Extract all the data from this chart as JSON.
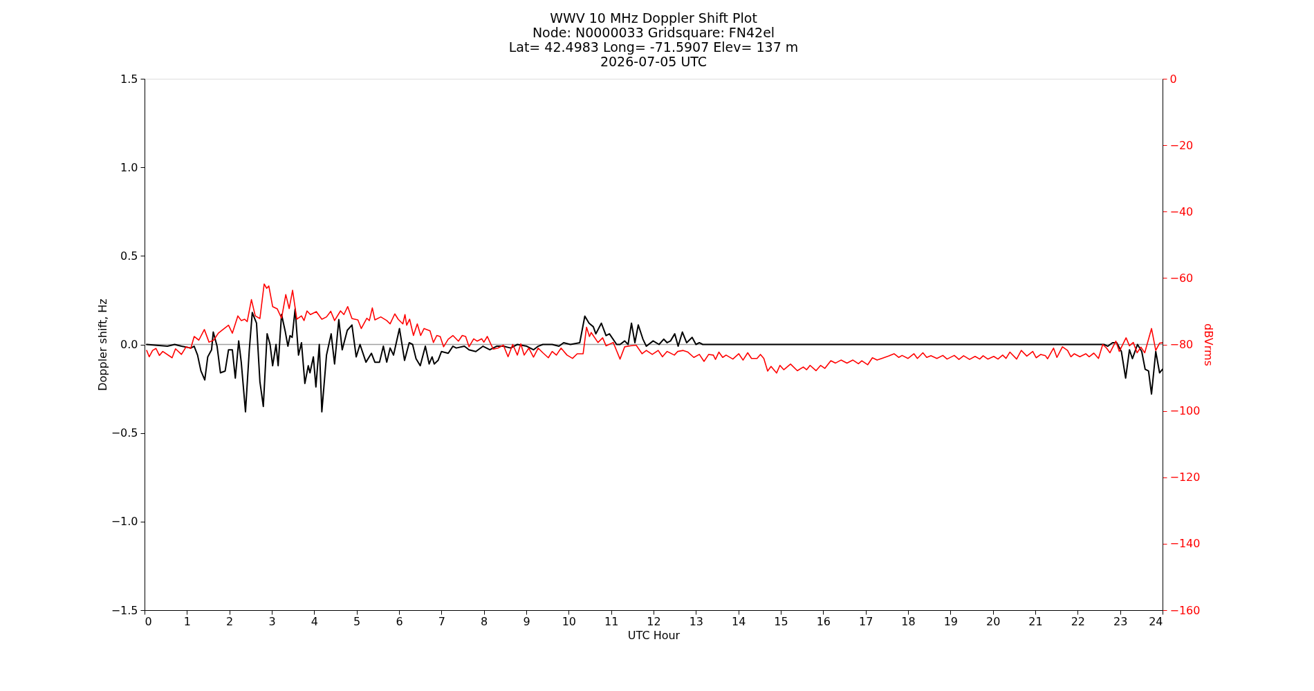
{
  "chart_data": {
    "type": "line",
    "title": "WWV 10 MHz Doppler Shift Plot",
    "subtitle": "Node:  N0000033     Gridsquare:  FN42el\nLat= 42.4983    Long= -71.5907    Elev= 137 m\n2026-07-05  UTC",
    "xlabel": "UTC Hour",
    "ylabel": "Doppler shift, Hz",
    "y2label": "dBVrms",
    "xlim": [
      0,
      24
    ],
    "xticks": [
      0,
      1,
      2,
      3,
      4,
      5,
      6,
      7,
      8,
      9,
      10,
      11,
      12,
      13,
      14,
      15,
      16,
      17,
      18,
      19,
      20,
      21,
      22,
      23,
      24
    ],
    "ylim": [
      -1.5,
      1.5
    ],
    "yticks": [
      {
        "value": -1.5,
        "label": "−1.5"
      },
      {
        "value": -1.0,
        "label": "−1.0"
      },
      {
        "value": -0.5,
        "label": "−0.5"
      },
      {
        "value": 0,
        "label": "0.0"
      },
      {
        "value": 0.5,
        "label": "0.5"
      },
      {
        "value": 1.0,
        "label": "1.0"
      },
      {
        "value": 1.5,
        "label": "1.5"
      }
    ],
    "y2lim": [
      -160,
      0
    ],
    "y2ticks": [
      {
        "value": -160,
        "label": "−160"
      },
      {
        "value": -140,
        "label": "−140"
      },
      {
        "value": -120,
        "label": "−120"
      },
      {
        "value": -100,
        "label": "−100"
      },
      {
        "value": -80,
        "label": "−80"
      },
      {
        "value": -60,
        "label": "−60"
      },
      {
        "value": -40,
        "label": "−40"
      },
      {
        "value": -20,
        "label": "−20"
      },
      0
    ],
    "ref_lines": [
      {
        "axis": "y",
        "value": 0,
        "color": "#a0a0a0"
      }
    ],
    "series": [
      {
        "color": "#000000",
        "axis": "y",
        "x": [
          0.05,
          0.54,
          0.71,
          0.87,
          1.09,
          1.17,
          1.25,
          1.33,
          1.42,
          1.49,
          1.58,
          1.62,
          1.71,
          1.79,
          1.9,
          1.98,
          2.07,
          2.14,
          2.22,
          2.28,
          2.38,
          2.47,
          2.54,
          2.64,
          2.72,
          2.8,
          2.89,
          2.96,
          3.02,
          3.1,
          3.15,
          3.23,
          3.32,
          3.38,
          3.43,
          3.48,
          3.55,
          3.63,
          3.7,
          3.78,
          3.86,
          3.9,
          3.98,
          4.04,
          4.12,
          4.18,
          4.29,
          4.4,
          4.48,
          4.58,
          4.66,
          4.78,
          4.89,
          4.99,
          5.08,
          5.22,
          5.35,
          5.43,
          5.54,
          5.63,
          5.71,
          5.79,
          5.87,
          6.01,
          6.13,
          6.24,
          6.32,
          6.4,
          6.5,
          6.62,
          6.71,
          6.78,
          6.83,
          6.92,
          7.0,
          7.16,
          7.27,
          7.35,
          7.54,
          7.65,
          7.81,
          7.98,
          8.14,
          8.3,
          8.46,
          8.63,
          8.79,
          9.01,
          9.17,
          9.28,
          9.39,
          9.61,
          9.77,
          9.88,
          10.04,
          10.26,
          10.38,
          10.48,
          10.58,
          10.64,
          10.77,
          10.88,
          10.96,
          11.13,
          11.21,
          11.32,
          11.4,
          11.48,
          11.56,
          11.64,
          11.75,
          11.83,
          11.99,
          12.13,
          12.24,
          12.32,
          12.4,
          12.5,
          12.58,
          12.68,
          12.78,
          12.91,
          13.0,
          13.08,
          13.16,
          18.0,
          22.54,
          22.62,
          22.71,
          22.82,
          22.92,
          23.03,
          23.13,
          23.22,
          23.29,
          23.41,
          23.51,
          23.59,
          23.67,
          23.74,
          23.84,
          23.93,
          24.0
        ],
        "values": [
          0.0,
          -0.01,
          0.0,
          -0.01,
          -0.02,
          -0.01,
          -0.06,
          -0.15,
          -0.2,
          -0.07,
          -0.03,
          0.07,
          -0.01,
          -0.16,
          -0.15,
          -0.03,
          -0.03,
          -0.19,
          0.02,
          -0.1,
          -0.38,
          -0.03,
          0.18,
          0.12,
          -0.21,
          -0.35,
          0.06,
          0.0,
          -0.12,
          0.0,
          -0.12,
          0.17,
          0.07,
          -0.01,
          0.05,
          0.04,
          0.2,
          -0.06,
          0.01,
          -0.22,
          -0.12,
          -0.16,
          -0.07,
          -0.24,
          0.0,
          -0.38,
          -0.06,
          0.06,
          -0.11,
          0.14,
          -0.03,
          0.08,
          0.11,
          -0.07,
          0.0,
          -0.1,
          -0.05,
          -0.1,
          -0.1,
          -0.01,
          -0.1,
          -0.02,
          -0.06,
          0.09,
          -0.09,
          0.01,
          0.0,
          -0.08,
          -0.12,
          -0.01,
          -0.11,
          -0.07,
          -0.11,
          -0.09,
          -0.04,
          -0.05,
          -0.01,
          -0.02,
          -0.01,
          -0.03,
          -0.04,
          -0.01,
          -0.03,
          -0.01,
          -0.01,
          -0.02,
          0.0,
          -0.01,
          -0.03,
          -0.01,
          0.0,
          0.0,
          -0.01,
          0.01,
          0.0,
          0.01,
          0.16,
          0.12,
          0.1,
          0.06,
          0.12,
          0.05,
          0.06,
          0.0,
          0.0,
          0.02,
          0.0,
          0.12,
          0.01,
          0.11,
          0.03,
          -0.01,
          0.02,
          0.0,
          0.03,
          0.01,
          0.02,
          0.06,
          -0.01,
          0.07,
          0.01,
          0.04,
          0.0,
          0.01,
          0.0,
          0.0,
          0.0,
          0.0,
          -0.01,
          0.01,
          0.01,
          -0.04,
          -0.19,
          -0.03,
          -0.08,
          0.0,
          -0.04,
          -0.14,
          -0.15,
          -0.28,
          -0.04,
          -0.16,
          -0.14
        ]
      },
      {
        "color": "#ff0000",
        "axis": "y2",
        "x": [
          0.05,
          0.11,
          0.19,
          0.27,
          0.35,
          0.43,
          0.65,
          0.73,
          0.87,
          0.98,
          1.09,
          1.17,
          1.28,
          1.41,
          1.52,
          1.63,
          1.74,
          1.88,
          1.98,
          2.07,
          2.2,
          2.28,
          2.36,
          2.42,
          2.52,
          2.61,
          2.72,
          2.82,
          2.88,
          2.93,
          3.02,
          3.13,
          3.23,
          3.33,
          3.41,
          3.49,
          3.59,
          3.7,
          3.76,
          3.83,
          3.91,
          4.05,
          4.18,
          4.29,
          4.39,
          4.48,
          4.62,
          4.7,
          4.79,
          4.89,
          5.03,
          5.11,
          5.24,
          5.3,
          5.37,
          5.43,
          5.57,
          5.71,
          5.79,
          5.9,
          5.98,
          6.09,
          6.14,
          6.18,
          6.25,
          6.34,
          6.43,
          6.51,
          6.59,
          6.73,
          6.81,
          6.89,
          6.97,
          7.05,
          7.16,
          7.27,
          7.4,
          7.49,
          7.57,
          7.65,
          7.76,
          7.84,
          7.95,
          8.0,
          8.08,
          8.22,
          8.33,
          8.46,
          8.57,
          8.68,
          8.79,
          8.87,
          8.95,
          9.06,
          9.17,
          9.28,
          9.39,
          9.52,
          9.61,
          9.71,
          9.82,
          9.96,
          10.09,
          10.2,
          10.34,
          10.42,
          10.49,
          10.53,
          10.69,
          10.8,
          10.88,
          11.05,
          11.21,
          11.32,
          11.45,
          11.59,
          11.73,
          11.83,
          11.97,
          12.11,
          12.21,
          12.32,
          12.49,
          12.57,
          12.7,
          12.81,
          12.95,
          13.08,
          13.19,
          13.3,
          13.41,
          13.46,
          13.54,
          13.63,
          13.71,
          13.87,
          14.01,
          14.11,
          14.22,
          14.31,
          14.44,
          14.52,
          14.6,
          14.69,
          14.77,
          14.9,
          14.98,
          15.07,
          15.23,
          15.39,
          15.53,
          15.61,
          15.69,
          15.83,
          15.94,
          16.04,
          16.18,
          16.29,
          16.42,
          16.56,
          16.7,
          16.83,
          16.91,
          17.05,
          17.16,
          17.27,
          17.38,
          17.54,
          17.67,
          17.78,
          17.86,
          18.0,
          18.14,
          18.22,
          18.35,
          18.44,
          18.54,
          18.68,
          18.82,
          18.92,
          19.09,
          19.2,
          19.31,
          19.45,
          19.58,
          19.69,
          19.77,
          19.88,
          20.02,
          20.12,
          20.23,
          20.31,
          20.4,
          20.56,
          20.67,
          20.8,
          20.94,
          21.02,
          21.13,
          21.24,
          21.29,
          21.43,
          21.51,
          21.64,
          21.76,
          21.84,
          21.92,
          22.05,
          22.19,
          22.27,
          22.38,
          22.49,
          22.59,
          22.68,
          22.76,
          22.9,
          22.98,
          23.14,
          23.22,
          23.31,
          23.4,
          23.49,
          23.58,
          23.74,
          23.84,
          23.93,
          24.0
        ],
        "values": [
          -81.8,
          -83.7,
          -81.8,
          -81.2,
          -83.3,
          -82.1,
          -84.0,
          -81.3,
          -83.0,
          -80.7,
          -81.2,
          -77.6,
          -78.7,
          -75.5,
          -79.3,
          -78.7,
          -76.6,
          -75.2,
          -74.2,
          -76.6,
          -71.4,
          -72.8,
          -72.4,
          -73.1,
          -66.5,
          -71.4,
          -72.2,
          -61.8,
          -63.1,
          -62.4,
          -68.6,
          -69.3,
          -72.1,
          -65.0,
          -69.2,
          -63.7,
          -72.4,
          -71.4,
          -72.8,
          -69.9,
          -71.0,
          -70.1,
          -72.4,
          -71.7,
          -70.0,
          -72.8,
          -69.9,
          -71.0,
          -68.6,
          -72.2,
          -72.6,
          -75.2,
          -72.1,
          -72.8,
          -69.0,
          -72.6,
          -71.7,
          -72.8,
          -73.8,
          -70.8,
          -72.4,
          -73.8,
          -71.0,
          -74.2,
          -72.4,
          -77.3,
          -73.8,
          -77.3,
          -75.2,
          -75.9,
          -79.4,
          -77.3,
          -77.6,
          -80.7,
          -78.4,
          -77.3,
          -79.0,
          -77.3,
          -77.6,
          -80.7,
          -78.3,
          -79.0,
          -78.3,
          -79.3,
          -77.6,
          -81.4,
          -81.1,
          -80.2,
          -83.7,
          -80.0,
          -83.2,
          -79.8,
          -83.2,
          -81.1,
          -83.8,
          -81.1,
          -82.5,
          -84.0,
          -82.1,
          -83.2,
          -81.1,
          -83.2,
          -84.2,
          -82.8,
          -82.8,
          -74.8,
          -77.6,
          -76.4,
          -79.4,
          -78.0,
          -80.4,
          -79.4,
          -84.4,
          -80.7,
          -80.4,
          -80.2,
          -82.8,
          -81.8,
          -83.0,
          -81.8,
          -83.7,
          -82.1,
          -83.2,
          -82.1,
          -81.8,
          -82.3,
          -83.9,
          -83.0,
          -85.1,
          -83.0,
          -83.2,
          -84.5,
          -82.3,
          -83.9,
          -83.2,
          -84.4,
          -82.8,
          -84.7,
          -82.5,
          -84.2,
          -84.2,
          -83.0,
          -84.2,
          -88.0,
          -86.6,
          -88.6,
          -86.3,
          -87.6,
          -85.9,
          -87.9,
          -86.8,
          -87.6,
          -86.3,
          -87.9,
          -86.3,
          -87.2,
          -84.9,
          -85.6,
          -84.7,
          -85.6,
          -84.7,
          -85.8,
          -84.9,
          -86.1,
          -84.0,
          -84.7,
          -84.2,
          -83.5,
          -82.8,
          -83.9,
          -83.3,
          -84.2,
          -82.8,
          -84.2,
          -82.5,
          -83.9,
          -83.4,
          -84.2,
          -83.3,
          -84.4,
          -83.3,
          -84.5,
          -83.4,
          -84.5,
          -83.6,
          -84.4,
          -83.4,
          -84.4,
          -83.6,
          -84.4,
          -83.2,
          -84.2,
          -82.3,
          -84.4,
          -81.8,
          -83.5,
          -82.1,
          -84.0,
          -83.0,
          -83.4,
          -84.3,
          -81.1,
          -83.9,
          -80.7,
          -81.8,
          -83.7,
          -82.8,
          -83.7,
          -82.8,
          -83.7,
          -82.6,
          -84.2,
          -80.0,
          -81.1,
          -82.5,
          -79.0,
          -82.1,
          -78.0,
          -80.4,
          -79.4,
          -82.5,
          -80.8,
          -82.5,
          -75.2,
          -81.8,
          -79.6,
          -79.5
        ]
      }
    ]
  }
}
